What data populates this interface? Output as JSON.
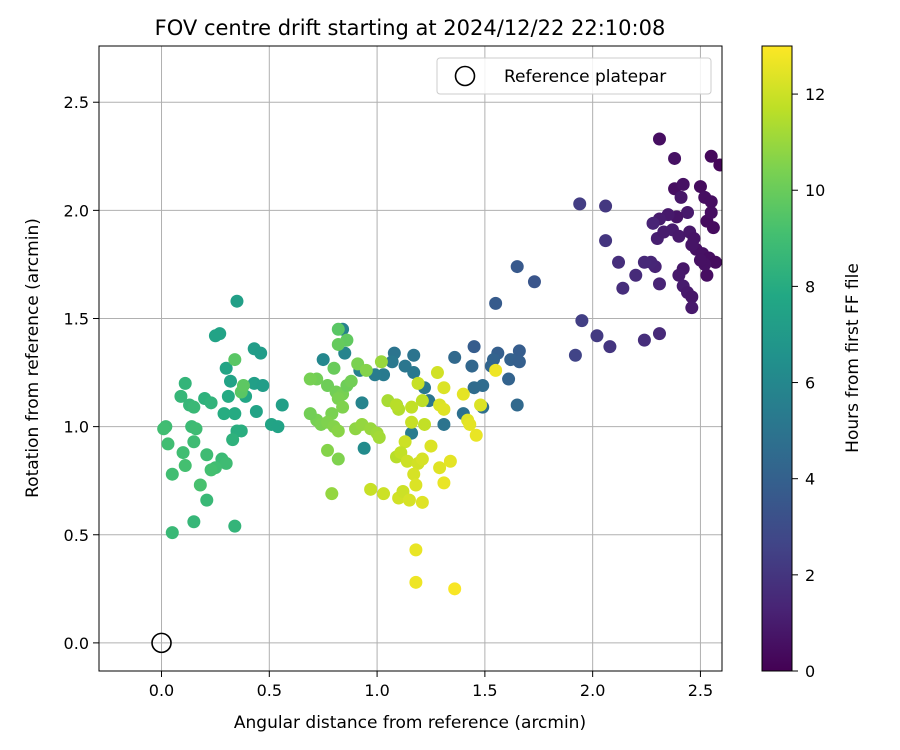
{
  "chart_data": {
    "type": "scatter",
    "title": "FOV centre drift starting at 2024/12/22 22:10:08",
    "xlabel": "Angular distance from reference (arcmin)",
    "ylabel": "Rotation from reference (arcmin)",
    "xlim": [
      -0.29,
      2.6
    ],
    "ylim": [
      -0.13,
      2.76
    ],
    "xticks": [
      0.0,
      0.5,
      1.0,
      1.5,
      2.0,
      2.5
    ],
    "yticks": [
      0.0,
      0.5,
      1.0,
      1.5,
      2.0,
      2.5
    ],
    "xtick_labels": [
      "0.0",
      "0.5",
      "1.0",
      "1.5",
      "2.0",
      "2.5"
    ],
    "ytick_labels": [
      "0.0",
      "0.5",
      "1.0",
      "1.5",
      "2.0",
      "2.5"
    ],
    "grid": true,
    "legend": {
      "placement": "top-right",
      "label": "Reference platepar"
    },
    "reference_point": {
      "x": 0.0,
      "y": 0.0
    },
    "colorbar": {
      "label": "Hours from first FF file",
      "colormap": "viridis",
      "range": [
        0,
        13
      ],
      "ticks": [
        0,
        2,
        4,
        6,
        8,
        10,
        12
      ],
      "tick_labels": [
        "0",
        "2",
        "4",
        "6",
        "8",
        "10",
        "12"
      ]
    },
    "points": [
      {
        "x": 2.31,
        "y": 2.33,
        "h": 0.5
      },
      {
        "x": 2.38,
        "y": 2.24,
        "h": 0.6
      },
      {
        "x": 2.55,
        "y": 2.25,
        "h": 0.3
      },
      {
        "x": 2.59,
        "y": 2.21,
        "h": 0.2
      },
      {
        "x": 2.38,
        "y": 2.1,
        "h": 0.5
      },
      {
        "x": 2.42,
        "y": 2.12,
        "h": 0.6
      },
      {
        "x": 2.5,
        "y": 2.11,
        "h": 0.4
      },
      {
        "x": 2.52,
        "y": 2.06,
        "h": 0.5
      },
      {
        "x": 2.55,
        "y": 2.04,
        "h": 0.5
      },
      {
        "x": 2.41,
        "y": 2.06,
        "h": 0.8
      },
      {
        "x": 2.44,
        "y": 1.99,
        "h": 0.9
      },
      {
        "x": 2.39,
        "y": 1.97,
        "h": 0.7
      },
      {
        "x": 2.35,
        "y": 1.98,
        "h": 0.9
      },
      {
        "x": 2.31,
        "y": 1.96,
        "h": 1.0
      },
      {
        "x": 2.28,
        "y": 1.94,
        "h": 1.3
      },
      {
        "x": 2.3,
        "y": 1.87,
        "h": 1.1
      },
      {
        "x": 2.33,
        "y": 1.9,
        "h": 1.0
      },
      {
        "x": 2.37,
        "y": 1.91,
        "h": 1.0
      },
      {
        "x": 2.4,
        "y": 1.88,
        "h": 0.9
      },
      {
        "x": 2.45,
        "y": 1.9,
        "h": 0.8
      },
      {
        "x": 2.47,
        "y": 1.87,
        "h": 0.7
      },
      {
        "x": 2.48,
        "y": 1.82,
        "h": 0.6
      },
      {
        "x": 2.51,
        "y": 1.8,
        "h": 0.6
      },
      {
        "x": 2.54,
        "y": 1.78,
        "h": 0.5
      },
      {
        "x": 2.57,
        "y": 1.76,
        "h": 0.4
      },
      {
        "x": 2.53,
        "y": 1.95,
        "h": 0.4
      },
      {
        "x": 2.56,
        "y": 1.92,
        "h": 0.4
      },
      {
        "x": 2.55,
        "y": 1.99,
        "h": 0.5
      },
      {
        "x": 2.46,
        "y": 1.84,
        "h": 0.7
      },
      {
        "x": 2.42,
        "y": 1.73,
        "h": 0.8
      },
      {
        "x": 2.4,
        "y": 1.7,
        "h": 0.9
      },
      {
        "x": 2.42,
        "y": 1.65,
        "h": 1.0
      },
      {
        "x": 2.44,
        "y": 1.62,
        "h": 0.9
      },
      {
        "x": 2.46,
        "y": 1.6,
        "h": 0.8
      },
      {
        "x": 2.46,
        "y": 1.55,
        "h": 0.9
      },
      {
        "x": 2.53,
        "y": 1.7,
        "h": 0.5
      },
      {
        "x": 2.52,
        "y": 1.75,
        "h": 0.6
      },
      {
        "x": 2.5,
        "y": 1.77,
        "h": 0.6
      },
      {
        "x": 2.31,
        "y": 1.66,
        "h": 1.3
      },
      {
        "x": 2.29,
        "y": 1.74,
        "h": 1.3
      },
      {
        "x": 2.27,
        "y": 1.76,
        "h": 1.4
      },
      {
        "x": 2.24,
        "y": 1.76,
        "h": 1.5
      },
      {
        "x": 2.2,
        "y": 1.7,
        "h": 1.6
      },
      {
        "x": 2.14,
        "y": 1.64,
        "h": 1.7
      },
      {
        "x": 2.12,
        "y": 1.76,
        "h": 1.7
      },
      {
        "x": 2.06,
        "y": 1.86,
        "h": 2.0
      },
      {
        "x": 2.06,
        "y": 2.02,
        "h": 2.1
      },
      {
        "x": 1.94,
        "y": 2.03,
        "h": 2.3
      },
      {
        "x": 2.24,
        "y": 1.4,
        "h": 1.7
      },
      {
        "x": 2.31,
        "y": 1.43,
        "h": 1.5
      },
      {
        "x": 2.08,
        "y": 1.37,
        "h": 2.0
      },
      {
        "x": 2.02,
        "y": 1.42,
        "h": 2.2
      },
      {
        "x": 1.95,
        "y": 1.49,
        "h": 2.4
      },
      {
        "x": 1.92,
        "y": 1.33,
        "h": 2.6
      },
      {
        "x": 1.73,
        "y": 1.67,
        "h": 3.4
      },
      {
        "x": 1.65,
        "y": 1.74,
        "h": 3.6
      },
      {
        "x": 1.55,
        "y": 1.57,
        "h": 3.7
      },
      {
        "x": 1.45,
        "y": 1.37,
        "h": 3.8
      },
      {
        "x": 1.56,
        "y": 1.34,
        "h": 3.9
      },
      {
        "x": 1.66,
        "y": 1.35,
        "h": 3.8
      },
      {
        "x": 1.62,
        "y": 1.31,
        "h": 4.0
      },
      {
        "x": 1.66,
        "y": 1.3,
        "h": 3.9
      },
      {
        "x": 1.54,
        "y": 1.31,
        "h": 4.1
      },
      {
        "x": 1.53,
        "y": 1.28,
        "h": 4.2
      },
      {
        "x": 1.44,
        "y": 1.28,
        "h": 4.3
      },
      {
        "x": 1.36,
        "y": 1.32,
        "h": 4.4
      },
      {
        "x": 1.61,
        "y": 1.22,
        "h": 4.1
      },
      {
        "x": 1.65,
        "y": 1.1,
        "h": 4.4
      },
      {
        "x": 1.49,
        "y": 1.19,
        "h": 4.6
      },
      {
        "x": 1.45,
        "y": 1.18,
        "h": 4.5
      },
      {
        "x": 1.49,
        "y": 1.09,
        "h": 4.7
      },
      {
        "x": 1.4,
        "y": 1.06,
        "h": 4.8
      },
      {
        "x": 1.31,
        "y": 1.01,
        "h": 5.0
      },
      {
        "x": 1.24,
        "y": 1.12,
        "h": 5.1
      },
      {
        "x": 1.22,
        "y": 1.18,
        "h": 5.2
      },
      {
        "x": 1.17,
        "y": 1.25,
        "h": 5.2
      },
      {
        "x": 1.17,
        "y": 1.33,
        "h": 5.0
      },
      {
        "x": 1.13,
        "y": 1.28,
        "h": 5.1
      },
      {
        "x": 1.08,
        "y": 1.34,
        "h": 5.0
      },
      {
        "x": 1.07,
        "y": 1.3,
        "h": 5.2
      },
      {
        "x": 1.03,
        "y": 1.24,
        "h": 5.3
      },
      {
        "x": 0.99,
        "y": 1.24,
        "h": 5.4
      },
      {
        "x": 0.92,
        "y": 1.26,
        "h": 5.6
      },
      {
        "x": 0.85,
        "y": 1.34,
        "h": 5.8
      },
      {
        "x": 0.84,
        "y": 1.45,
        "h": 5.7
      },
      {
        "x": 0.75,
        "y": 1.31,
        "h": 6.0
      },
      {
        "x": 0.93,
        "y": 1.11,
        "h": 5.8
      },
      {
        "x": 0.94,
        "y": 0.9,
        "h": 6.2
      },
      {
        "x": 1.09,
        "y": 1.1,
        "h": 5.6
      },
      {
        "x": 1.16,
        "y": 0.97,
        "h": 5.4
      },
      {
        "x": 0.35,
        "y": 1.58,
        "h": 7.3
      },
      {
        "x": 0.25,
        "y": 1.42,
        "h": 7.5
      },
      {
        "x": 0.27,
        "y": 1.43,
        "h": 7.5
      },
      {
        "x": 0.43,
        "y": 1.36,
        "h": 7.2
      },
      {
        "x": 0.46,
        "y": 1.34,
        "h": 7.1
      },
      {
        "x": 0.3,
        "y": 1.27,
        "h": 7.6
      },
      {
        "x": 0.32,
        "y": 1.21,
        "h": 7.5
      },
      {
        "x": 0.43,
        "y": 1.2,
        "h": 7.3
      },
      {
        "x": 0.47,
        "y": 1.19,
        "h": 7.2
      },
      {
        "x": 0.44,
        "y": 1.07,
        "h": 7.5
      },
      {
        "x": 0.39,
        "y": 1.14,
        "h": 7.7
      },
      {
        "x": 0.31,
        "y": 1.14,
        "h": 7.9
      },
      {
        "x": 0.34,
        "y": 1.06,
        "h": 7.9
      },
      {
        "x": 0.29,
        "y": 1.06,
        "h": 8.0
      },
      {
        "x": 0.56,
        "y": 1.1,
        "h": 7.3
      },
      {
        "x": 0.51,
        "y": 1.01,
        "h": 7.6
      },
      {
        "x": 0.54,
        "y": 1.0,
        "h": 7.5
      },
      {
        "x": 0.35,
        "y": 0.98,
        "h": 8.1
      },
      {
        "x": 0.37,
        "y": 0.98,
        "h": 8.1
      },
      {
        "x": 0.33,
        "y": 0.94,
        "h": 8.3
      },
      {
        "x": 0.2,
        "y": 1.13,
        "h": 8.3
      },
      {
        "x": 0.23,
        "y": 1.11,
        "h": 8.4
      },
      {
        "x": 0.11,
        "y": 1.2,
        "h": 8.5
      },
      {
        "x": 0.09,
        "y": 1.14,
        "h": 8.6
      },
      {
        "x": 0.13,
        "y": 1.1,
        "h": 8.6
      },
      {
        "x": 0.15,
        "y": 1.09,
        "h": 8.7
      },
      {
        "x": 0.14,
        "y": 1.0,
        "h": 8.8
      },
      {
        "x": 0.16,
        "y": 0.99,
        "h": 8.9
      },
      {
        "x": 0.15,
        "y": 0.93,
        "h": 8.9
      },
      {
        "x": 0.02,
        "y": 1.0,
        "h": 8.9
      },
      {
        "x": 0.01,
        "y": 0.99,
        "h": 9.0
      },
      {
        "x": 0.03,
        "y": 0.92,
        "h": 9.0
      },
      {
        "x": 0.1,
        "y": 0.88,
        "h": 9.0
      },
      {
        "x": 0.11,
        "y": 0.82,
        "h": 9.1
      },
      {
        "x": 0.21,
        "y": 0.87,
        "h": 8.9
      },
      {
        "x": 0.28,
        "y": 0.85,
        "h": 8.8
      },
      {
        "x": 0.3,
        "y": 0.83,
        "h": 8.9
      },
      {
        "x": 0.25,
        "y": 0.81,
        "h": 9.0
      },
      {
        "x": 0.23,
        "y": 0.8,
        "h": 9.1
      },
      {
        "x": 0.18,
        "y": 0.73,
        "h": 9.2
      },
      {
        "x": 0.05,
        "y": 0.78,
        "h": 9.0
      },
      {
        "x": 0.21,
        "y": 0.66,
        "h": 8.7
      },
      {
        "x": 0.15,
        "y": 0.56,
        "h": 8.6
      },
      {
        "x": 0.05,
        "y": 0.51,
        "h": 8.7
      },
      {
        "x": 0.34,
        "y": 0.54,
        "h": 8.5
      },
      {
        "x": 0.37,
        "y": 1.16,
        "h": 9.6
      },
      {
        "x": 0.38,
        "y": 1.19,
        "h": 9.7
      },
      {
        "x": 0.34,
        "y": 1.31,
        "h": 9.6
      },
      {
        "x": 0.82,
        "y": 1.45,
        "h": 9.6
      },
      {
        "x": 0.86,
        "y": 1.4,
        "h": 9.8
      },
      {
        "x": 0.82,
        "y": 1.38,
        "h": 9.9
      },
      {
        "x": 0.8,
        "y": 1.27,
        "h": 10.0
      },
      {
        "x": 0.72,
        "y": 1.22,
        "h": 10.2
      },
      {
        "x": 0.69,
        "y": 1.22,
        "h": 10.3
      },
      {
        "x": 0.77,
        "y": 1.19,
        "h": 10.1
      },
      {
        "x": 0.81,
        "y": 1.16,
        "h": 10.2
      },
      {
        "x": 0.84,
        "y": 1.15,
        "h": 10.3
      },
      {
        "x": 0.86,
        "y": 1.19,
        "h": 10.1
      },
      {
        "x": 0.88,
        "y": 1.21,
        "h": 10.2
      },
      {
        "x": 0.91,
        "y": 1.29,
        "h": 10.4
      },
      {
        "x": 0.95,
        "y": 1.26,
        "h": 10.6
      },
      {
        "x": 0.82,
        "y": 1.13,
        "h": 10.4
      },
      {
        "x": 0.84,
        "y": 1.09,
        "h": 10.5
      },
      {
        "x": 0.79,
        "y": 1.06,
        "h": 10.4
      },
      {
        "x": 0.72,
        "y": 1.03,
        "h": 10.3
      },
      {
        "x": 0.74,
        "y": 1.01,
        "h": 10.4
      },
      {
        "x": 0.69,
        "y": 1.06,
        "h": 10.2
      },
      {
        "x": 0.77,
        "y": 1.02,
        "h": 10.5
      },
      {
        "x": 0.8,
        "y": 1.0,
        "h": 10.6
      },
      {
        "x": 0.82,
        "y": 0.98,
        "h": 10.7
      },
      {
        "x": 0.9,
        "y": 0.99,
        "h": 10.8
      },
      {
        "x": 0.93,
        "y": 1.01,
        "h": 10.9
      },
      {
        "x": 0.97,
        "y": 0.99,
        "h": 11.0
      },
      {
        "x": 1.0,
        "y": 0.97,
        "h": 11.1
      },
      {
        "x": 1.01,
        "y": 0.95,
        "h": 11.2
      },
      {
        "x": 1.02,
        "y": 1.3,
        "h": 11.0
      },
      {
        "x": 0.77,
        "y": 0.89,
        "h": 10.6
      },
      {
        "x": 0.82,
        "y": 0.85,
        "h": 10.5
      },
      {
        "x": 0.79,
        "y": 0.69,
        "h": 10.9
      },
      {
        "x": 1.05,
        "y": 1.12,
        "h": 11.3
      },
      {
        "x": 1.1,
        "y": 1.08,
        "h": 11.5
      },
      {
        "x": 1.09,
        "y": 1.1,
        "h": 11.6
      },
      {
        "x": 1.16,
        "y": 1.09,
        "h": 11.8
      },
      {
        "x": 1.19,
        "y": 1.2,
        "h": 11.9
      },
      {
        "x": 1.21,
        "y": 1.12,
        "h": 11.7
      },
      {
        "x": 1.22,
        "y": 1.01,
        "h": 11.8
      },
      {
        "x": 1.16,
        "y": 1.02,
        "h": 11.9
      },
      {
        "x": 1.13,
        "y": 0.93,
        "h": 12.0
      },
      {
        "x": 1.09,
        "y": 0.86,
        "h": 11.6
      },
      {
        "x": 1.11,
        "y": 0.88,
        "h": 11.8
      },
      {
        "x": 1.14,
        "y": 0.84,
        "h": 12.0
      },
      {
        "x": 1.19,
        "y": 0.83,
        "h": 12.1
      },
      {
        "x": 1.21,
        "y": 0.85,
        "h": 12.2
      },
      {
        "x": 1.25,
        "y": 0.91,
        "h": 12.3
      },
      {
        "x": 1.17,
        "y": 0.78,
        "h": 12.2
      },
      {
        "x": 1.29,
        "y": 0.81,
        "h": 12.4
      },
      {
        "x": 1.34,
        "y": 0.84,
        "h": 12.5
      },
      {
        "x": 1.31,
        "y": 0.74,
        "h": 12.6
      },
      {
        "x": 1.28,
        "y": 1.25,
        "h": 12.1
      },
      {
        "x": 1.31,
        "y": 1.18,
        "h": 12.3
      },
      {
        "x": 1.29,
        "y": 1.1,
        "h": 12.3
      },
      {
        "x": 1.31,
        "y": 1.08,
        "h": 12.4
      },
      {
        "x": 1.4,
        "y": 1.15,
        "h": 12.5
      },
      {
        "x": 1.42,
        "y": 1.03,
        "h": 12.4
      },
      {
        "x": 1.43,
        "y": 1.01,
        "h": 12.5
      },
      {
        "x": 1.46,
        "y": 0.96,
        "h": 12.6
      },
      {
        "x": 1.48,
        "y": 1.1,
        "h": 12.3
      },
      {
        "x": 1.55,
        "y": 1.26,
        "h": 12.7
      },
      {
        "x": 0.97,
        "y": 0.71,
        "h": 11.9
      },
      {
        "x": 1.03,
        "y": 0.69,
        "h": 12.0
      },
      {
        "x": 1.1,
        "y": 0.67,
        "h": 12.1
      },
      {
        "x": 1.12,
        "y": 0.7,
        "h": 12.0
      },
      {
        "x": 1.15,
        "y": 0.66,
        "h": 12.2
      },
      {
        "x": 1.18,
        "y": 0.73,
        "h": 12.3
      },
      {
        "x": 1.21,
        "y": 0.65,
        "h": 12.4
      },
      {
        "x": 1.18,
        "y": 0.43,
        "h": 12.6
      },
      {
        "x": 1.18,
        "y": 0.28,
        "h": 12.7
      },
      {
        "x": 1.36,
        "y": 0.25,
        "h": 12.9
      }
    ]
  }
}
